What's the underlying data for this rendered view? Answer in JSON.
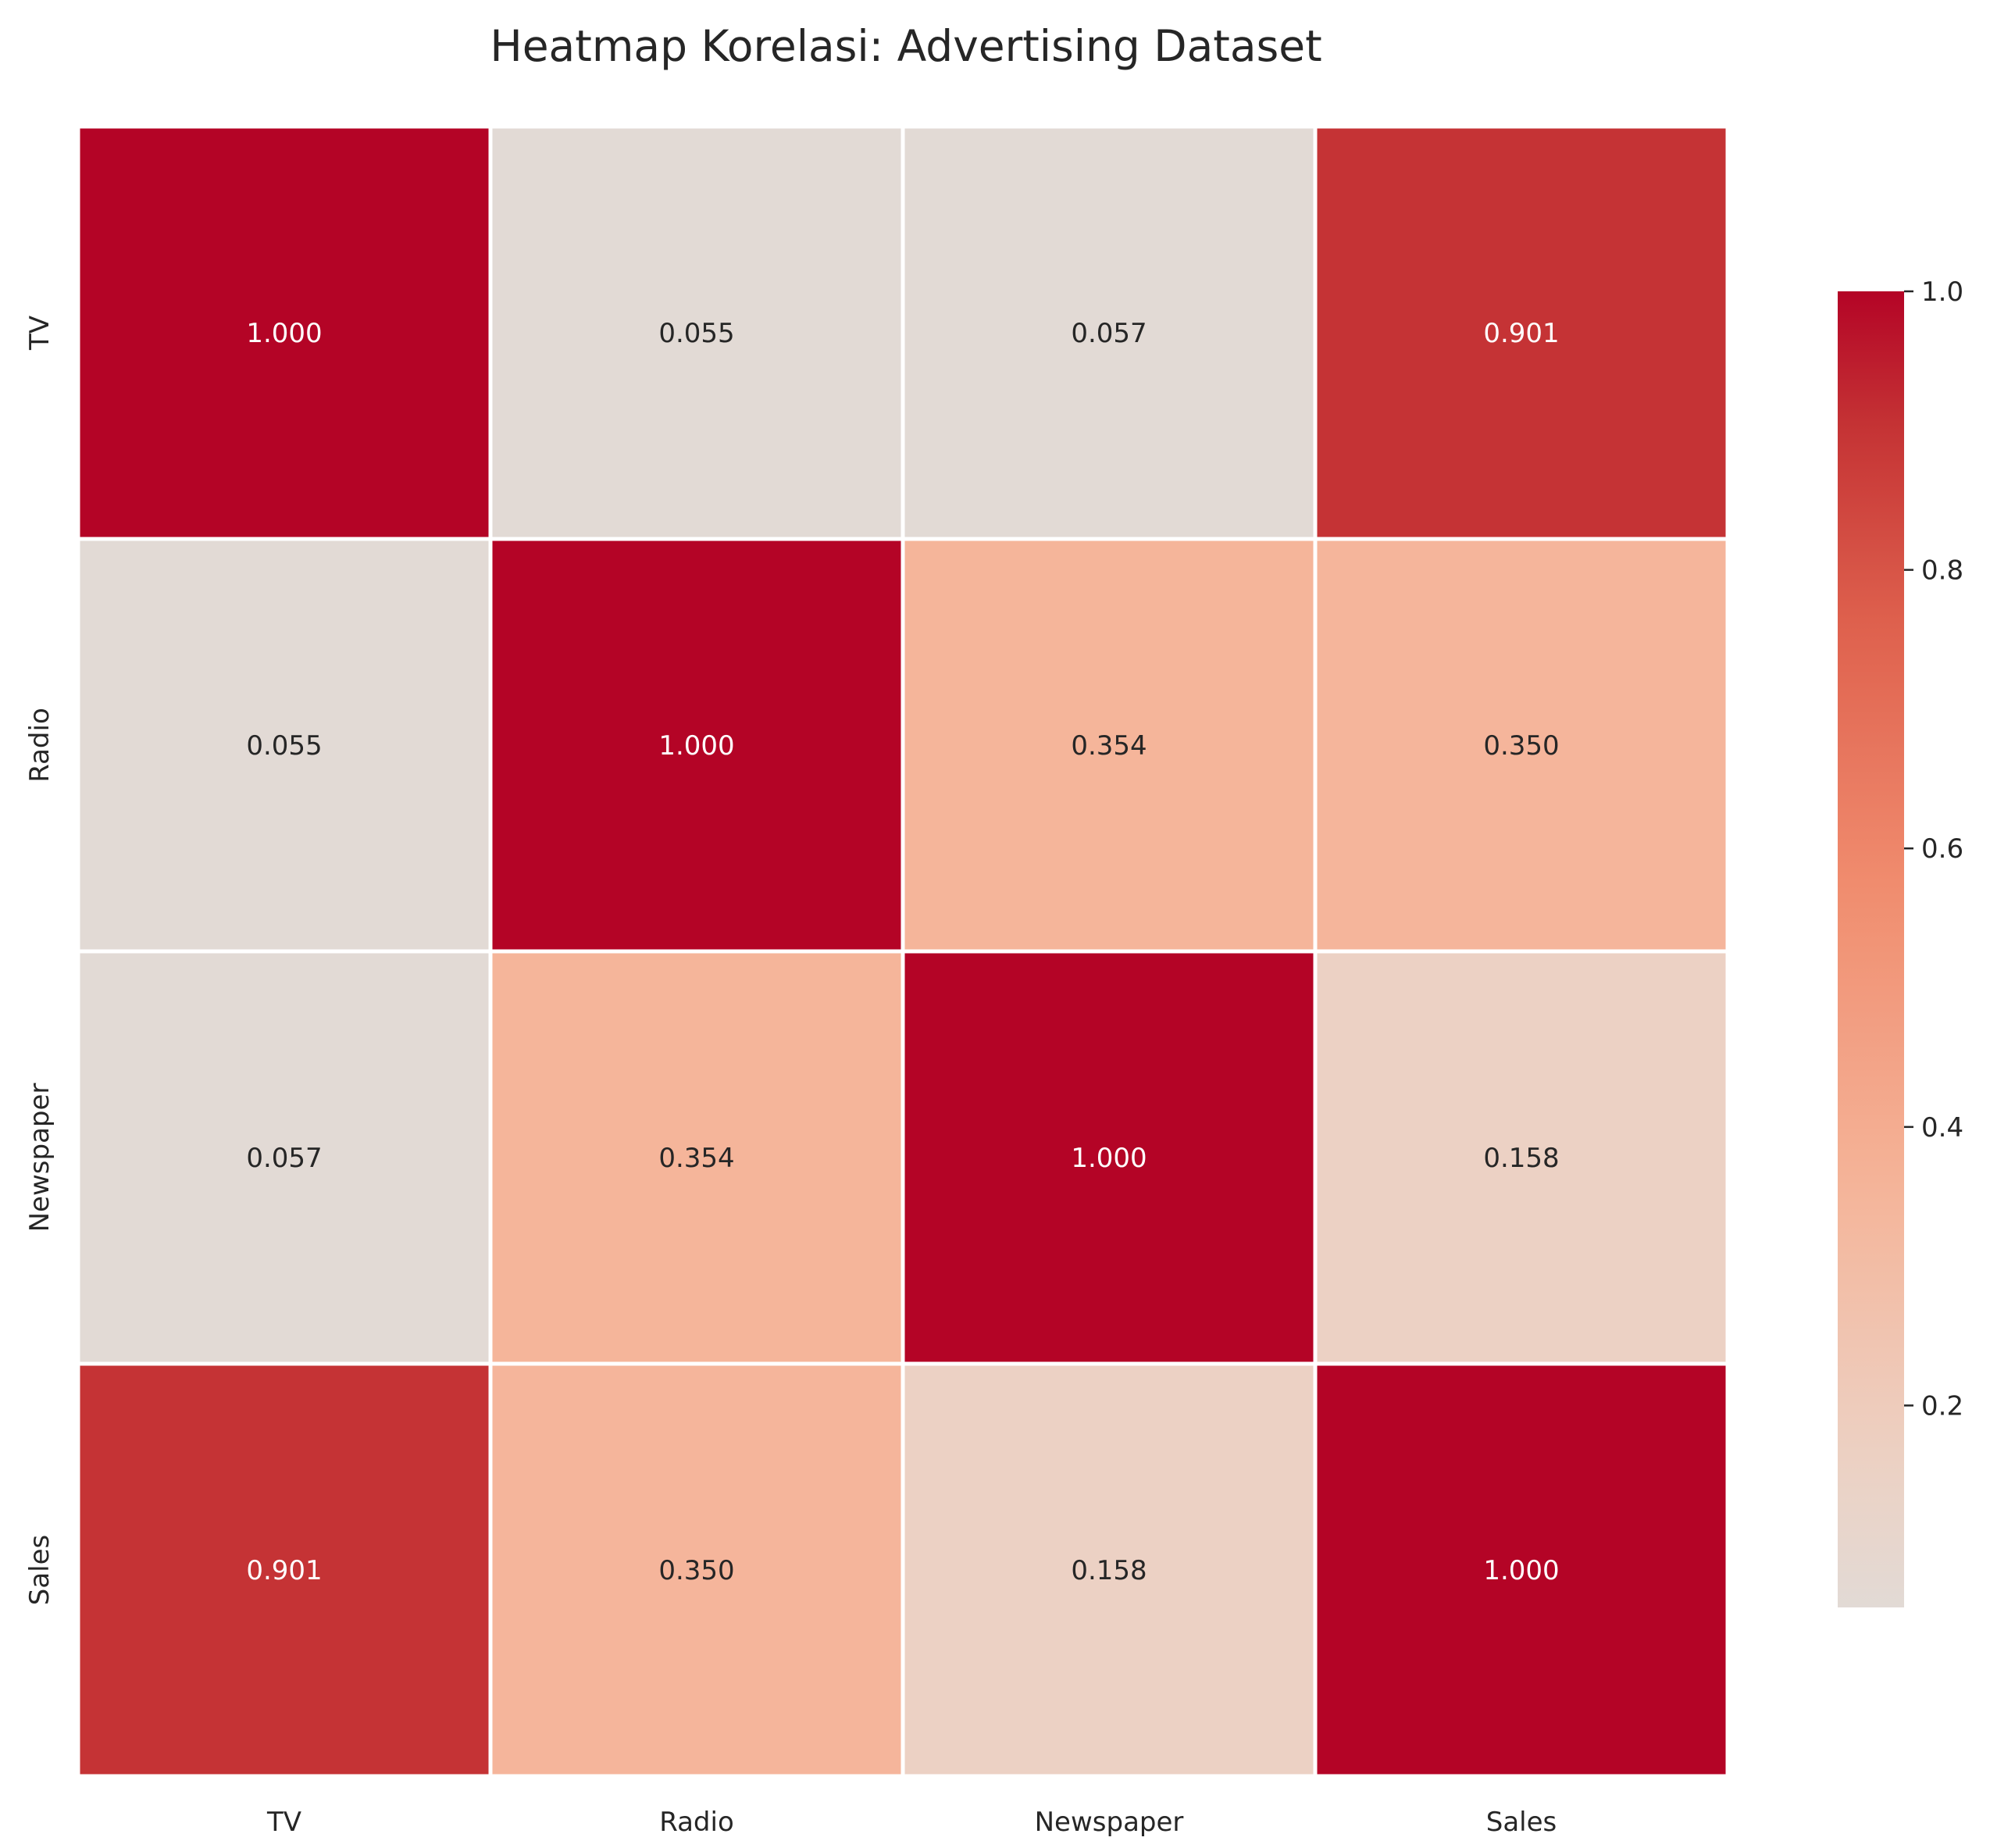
{
  "chart_data": {
    "type": "heatmap",
    "title": "Heatmap Korelasi: Advertising Dataset",
    "row_labels": [
      "TV",
      "Radio",
      "Newspaper",
      "Sales"
    ],
    "col_labels": [
      "TV",
      "Radio",
      "Newspaper",
      "Sales"
    ],
    "values": [
      [
        1.0,
        0.055,
        0.057,
        0.901
      ],
      [
        0.055,
        1.0,
        0.354,
        0.35
      ],
      [
        0.057,
        0.354,
        1.0,
        0.158
      ],
      [
        0.901,
        0.35,
        0.158,
        1.0
      ]
    ],
    "cell_labels": [
      [
        "1.000",
        "0.055",
        "0.057",
        "0.901"
      ],
      [
        "0.055",
        "1.000",
        "0.354",
        "0.350"
      ],
      [
        "0.057",
        "0.354",
        "1.000",
        "0.158"
      ],
      [
        "0.901",
        "0.350",
        "0.158",
        "1.000"
      ]
    ],
    "colormap": "coolwarm",
    "colorbar": {
      "range": [
        0.055,
        1.0
      ],
      "ticks": [
        0.2,
        0.4,
        0.6,
        0.8,
        1.0
      ],
      "tick_labels": [
        "0.2",
        "0.4",
        "0.6",
        "0.8",
        "1.0"
      ]
    },
    "grid_line_color": "#ffffff",
    "text_color_light": "#ffffff",
    "text_color_dark": "#262626"
  }
}
